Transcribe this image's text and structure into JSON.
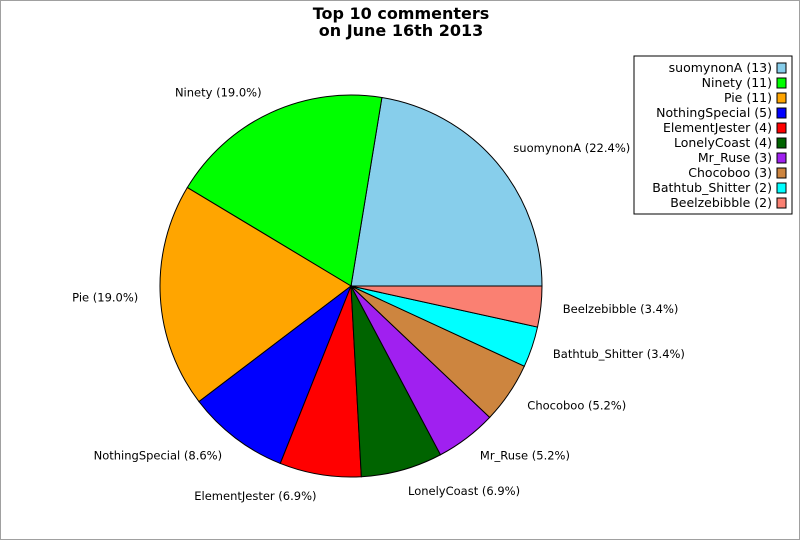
{
  "chart_data": {
    "type": "pie",
    "title": [
      "Top 10 commenters",
      "on June 16th 2013"
    ],
    "start_angle_deg": 0,
    "direction": "counterclockwise",
    "legend_position": "top-right",
    "slices": [
      {
        "name": "suomynonA",
        "value": 13,
        "percent_label": "suomynonA (22.4%)",
        "legend_label": "suomynonA (13)",
        "color": "#87CEEB"
      },
      {
        "name": "Ninety",
        "value": 11,
        "percent_label": "Ninety (19.0%)",
        "legend_label": "Ninety (11)",
        "color": "#00FF00"
      },
      {
        "name": "Pie",
        "value": 11,
        "percent_label": "Pie (19.0%)",
        "legend_label": "Pie (11)",
        "color": "#FFA500"
      },
      {
        "name": "NothingSpecial",
        "value": 5,
        "percent_label": "NothingSpecial (8.6%)",
        "legend_label": "NothingSpecial (5)",
        "color": "#0000FF"
      },
      {
        "name": "ElementJester",
        "value": 4,
        "percent_label": "ElementJester (6.9%)",
        "legend_label": "ElementJester (4)",
        "color": "#FF0000"
      },
      {
        "name": "LonelyCoast",
        "value": 4,
        "percent_label": "LonelyCoast (6.9%)",
        "legend_label": "LonelyCoast (4)",
        "color": "#006400"
      },
      {
        "name": "Mr_Ruse",
        "value": 3,
        "percent_label": "Mr_Ruse (5.2%)",
        "legend_label": "Mr_Ruse (3)",
        "color": "#A020F0"
      },
      {
        "name": "Chocoboo",
        "value": 3,
        "percent_label": "Chocoboo (5.2%)",
        "legend_label": "Chocoboo (3)",
        "color": "#CD853F"
      },
      {
        "name": "Bathtub_Shitter",
        "value": 2,
        "percent_label": "Bathtub_Shitter (3.4%)",
        "legend_label": "Bathtub_Shitter (2)",
        "color": "#00FFFF"
      },
      {
        "name": "Beelzebibble",
        "value": 2,
        "percent_label": "Beelzebibble (3.4%)",
        "legend_label": "Beelzebibble (2)",
        "color": "#FA8072"
      }
    ]
  }
}
